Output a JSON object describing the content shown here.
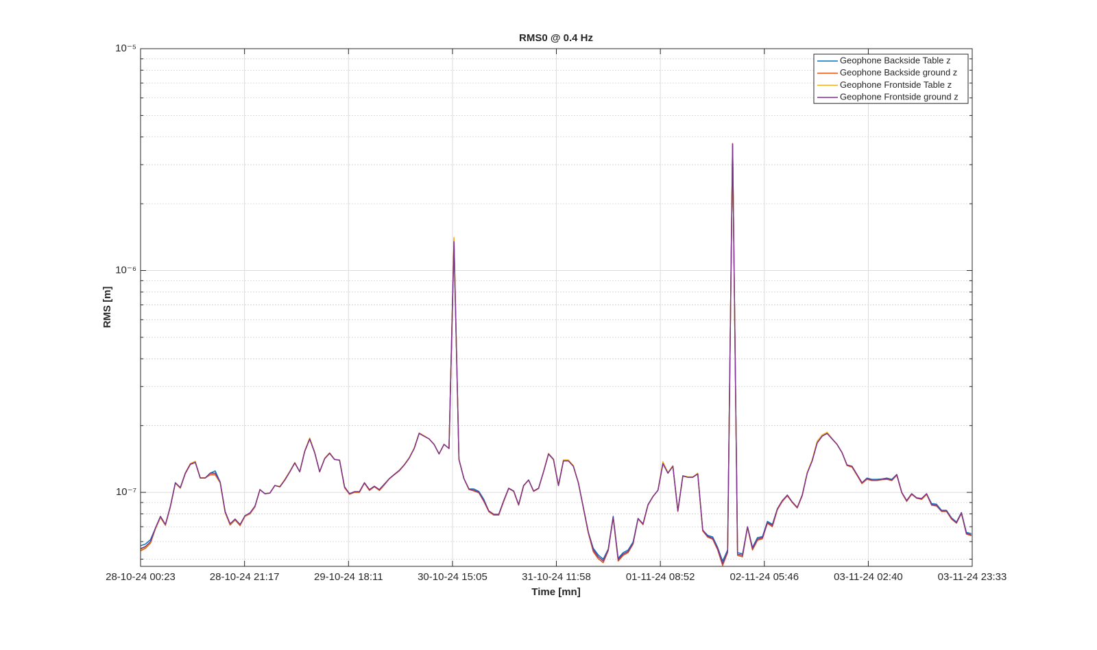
{
  "chart_data": {
    "type": "line",
    "title": "RMS0 @ 0.4 Hz",
    "xlabel": "Time [mn]",
    "ylabel": "RMS [m]",
    "log_y": true,
    "grid": true,
    "minor_grid": true,
    "legend": "upper right",
    "xlim": [
      "28-10-24 00:23",
      "03-11-24 23:33"
    ],
    "xticks": [
      "28-10-24 00:23",
      "28-10-24 21:17",
      "29-10-24 18:11",
      "30-10-24 15:05",
      "31-10-24 11:58",
      "01-11-24 08:52",
      "02-11-24 05:46",
      "03-11-24 02:40",
      "03-11-24 23:33"
    ],
    "ylim": [
      4.64e-08,
      1e-05
    ],
    "yticks": [
      {
        "value": 1e-07,
        "label": "10⁻⁷"
      },
      {
        "value": 1e-06,
        "label": "10⁻⁶"
      },
      {
        "value": 1e-05,
        "label": "10⁻⁵"
      }
    ],
    "x": [
      "28-10-24 00:23",
      "28-10-24 01:23",
      "28-10-24 02:23",
      "28-10-24 03:23",
      "28-10-24 04:23",
      "28-10-24 05:23",
      "28-10-24 06:23",
      "28-10-24 07:23",
      "28-10-24 08:23",
      "28-10-24 09:23",
      "28-10-24 10:23",
      "28-10-24 11:23",
      "28-10-24 12:23",
      "28-10-24 13:23",
      "28-10-24 14:23",
      "28-10-24 15:23",
      "28-10-24 16:23",
      "28-10-24 17:23",
      "28-10-24 18:23",
      "28-10-24 19:23",
      "28-10-24 20:23",
      "28-10-24 21:23",
      "28-10-24 22:23",
      "28-10-24 23:23",
      "29-10-24 00:23",
      "29-10-24 01:23",
      "29-10-24 02:23",
      "29-10-24 03:23",
      "29-10-24 04:23",
      "29-10-24 05:23",
      "29-10-24 06:23",
      "29-10-24 07:23",
      "29-10-24 08:23",
      "29-10-24 09:23",
      "29-10-24 10:23",
      "29-10-24 11:23",
      "29-10-24 12:23",
      "29-10-24 13:23",
      "29-10-24 14:23",
      "29-10-24 15:23",
      "29-10-24 16:23",
      "29-10-24 17:23",
      "29-10-24 18:23",
      "29-10-24 19:23",
      "29-10-24 20:23",
      "29-10-24 21:23",
      "29-10-24 22:23",
      "29-10-24 23:23",
      "30-10-24 00:23",
      "30-10-24 01:23",
      "30-10-24 02:23",
      "30-10-24 03:23",
      "30-10-24 04:23",
      "30-10-24 05:23",
      "30-10-24 06:23",
      "30-10-24 07:23",
      "30-10-24 08:23",
      "30-10-24 09:23",
      "30-10-24 10:23",
      "30-10-24 11:23",
      "30-10-24 12:23",
      "30-10-24 13:23",
      "30-10-24 14:23",
      "30-10-24 15:23",
      "30-10-24 16:23",
      "30-10-24 17:23",
      "30-10-24 18:23",
      "30-10-24 19:23",
      "30-10-24 20:23",
      "30-10-24 21:23",
      "30-10-24 22:23",
      "30-10-24 23:23",
      "31-10-24 00:23",
      "31-10-24 01:23",
      "31-10-24 02:23",
      "31-10-24 03:23",
      "31-10-24 04:23",
      "31-10-24 05:23",
      "31-10-24 06:23",
      "31-10-24 07:23",
      "31-10-24 08:23",
      "31-10-24 09:23",
      "31-10-24 10:23",
      "31-10-24 11:23",
      "31-10-24 12:23",
      "31-10-24 13:23",
      "31-10-24 14:23",
      "31-10-24 15:23",
      "31-10-24 16:23",
      "31-10-24 17:23",
      "31-10-24 18:23",
      "31-10-24 19:23",
      "31-10-24 20:23",
      "31-10-24 21:23",
      "31-10-24 22:23",
      "31-10-24 23:23",
      "01-11-24 00:23",
      "01-11-24 01:23",
      "01-11-24 02:23",
      "01-11-24 03:23",
      "01-11-24 04:23",
      "01-11-24 05:23",
      "01-11-24 06:23",
      "01-11-24 07:23",
      "01-11-24 08:23",
      "01-11-24 09:23",
      "01-11-24 10:23",
      "01-11-24 11:23",
      "01-11-24 12:23",
      "01-11-24 13:23",
      "01-11-24 14:23",
      "01-11-24 15:23",
      "01-11-24 16:23",
      "01-11-24 17:23",
      "01-11-24 18:23",
      "01-11-24 19:23",
      "01-11-24 20:23",
      "01-11-24 21:23",
      "01-11-24 22:23",
      "01-11-24 23:23",
      "02-11-24 00:23",
      "02-11-24 01:23",
      "02-11-24 02:23",
      "02-11-24 03:23",
      "02-11-24 04:23",
      "02-11-24 05:23",
      "02-11-24 06:23",
      "02-11-24 07:23",
      "02-11-24 08:23",
      "02-11-24 09:23",
      "02-11-24 10:23",
      "02-11-24 11:23",
      "02-11-24 12:23",
      "02-11-24 13:23",
      "02-11-24 14:23",
      "02-11-24 15:23",
      "02-11-24 16:23",
      "02-11-24 17:23",
      "02-11-24 18:23",
      "02-11-24 19:23",
      "02-11-24 20:23",
      "02-11-24 21:23",
      "02-11-24 22:23",
      "02-11-24 23:23",
      "03-11-24 00:23",
      "03-11-24 01:23",
      "03-11-24 02:23",
      "03-11-24 03:23",
      "03-11-24 04:23",
      "03-11-24 05:23",
      "03-11-24 06:23",
      "03-11-24 07:23",
      "03-11-24 08:23",
      "03-11-24 09:23",
      "03-11-24 10:23",
      "03-11-24 11:23",
      "03-11-24 12:23",
      "03-11-24 13:23",
      "03-11-24 14:23",
      "03-11-24 15:23",
      "03-11-24 16:23",
      "03-11-24 17:23",
      "03-11-24 18:23",
      "03-11-24 19:23",
      "03-11-24 20:23",
      "03-11-24 21:23",
      "03-11-24 22:23",
      "03-11-24 23:23"
    ],
    "series": [
      {
        "name": "Geophone Backside Table z",
        "color": "#0072bd",
        "values": [
          5.75e-08,
          5.85e-08,
          6.12e-08,
          6.91e-08,
          7.79e-08,
          7.16e-08,
          8.67e-08,
          1.105e-07,
          1.051e-07,
          1.221e-07,
          1.339e-07,
          1.368e-07,
          1.161e-07,
          1.161e-07,
          1.221e-07,
          1.25e-07,
          1.113e-07,
          8.19e-08,
          7.21e-08,
          7.58e-08,
          7.16e-08,
          7.85e-08,
          8.08e-08,
          8.67e-08,
          1.029e-07,
          9.86e-08,
          9.93e-08,
          1.074e-07,
          1.059e-07,
          1.137e-07,
          1.238e-07,
          1.358e-07,
          1.238e-07,
          1.532e-07,
          1.742e-07,
          1.511e-07,
          1.238e-07,
          1.418e-07,
          1.501e-07,
          1.407e-07,
          1.397e-07,
          1.059e-07,
          9.86e-08,
          1.007e-07,
          1.007e-07,
          1.105e-07,
          1.029e-07,
          1.066e-07,
          1.029e-07,
          1.089e-07,
          1.153e-07,
          1.204e-07,
          1.256e-07,
          1.329e-07,
          1.428e-07,
          1.577e-07,
          1.845e-07,
          1.792e-07,
          1.742e-07,
          1.646e-07,
          1.49e-07,
          1.646e-07,
          1.577e-07,
          1.32e-06,
          1.407e-07,
          1.153e-07,
          1.036e-07,
          1.036e-07,
          1.01e-07,
          9.3e-08,
          8.25e-08,
          7.96e-08,
          7.96e-08,
          9.18e-08,
          1.044e-07,
          1.014e-07,
          8.8e-08,
          1.074e-07,
          1.137e-07,
          1.014e-07,
          1.044e-07,
          1.238e-07,
          1.49e-07,
          1.407e-07,
          1.074e-07,
          1.387e-07,
          1.387e-07,
          1.311e-07,
          1.105e-07,
          8.55e-08,
          6.62e-08,
          5.6e-08,
          5.22e-08,
          5e-08,
          5.55e-08,
          7.8e-08,
          5.05e-08,
          5.35e-08,
          5.5e-08,
          5.98e-08,
          7.63e-08,
          7.21e-08,
          8.8e-08,
          9.58e-08,
          1.022e-07,
          1.348e-07,
          1.221e-07,
          1.311e-07,
          8.25e-08,
          1.186e-07,
          1.17e-07,
          1.17e-07,
          1.212e-07,
          6.76e-08,
          6.4e-08,
          6.3e-08,
          5.65e-08,
          4.9e-08,
          5.5e-08,
          3.7e-06,
          5.35e-08,
          5.28e-08,
          7e-08,
          5.65e-08,
          6.25e-08,
          6.32e-08,
          7.4e-08,
          7.18e-08,
          8.43e-08,
          9.18e-08,
          9.72e-08,
          9.05e-08,
          8.55e-08,
          9.72e-08,
          1.221e-07,
          1.387e-07,
          1.67e-07,
          1.792e-07,
          1.845e-07,
          1.742e-07,
          1.646e-07,
          1.511e-07,
          1.329e-07,
          1.311e-07,
          1.204e-07,
          1.105e-07,
          1.16e-07,
          1.145e-07,
          1.145e-07,
          1.15e-07,
          1.16e-07,
          1.145e-07,
          1.204e-07,
          1e-07,
          9.18e-08,
          9.86e-08,
          9.45e-08,
          9.38e-08,
          9.86e-08,
          8.9e-08,
          8.84e-08,
          8.3e-08,
          8.3e-08,
          7.68e-08,
          7.35e-08,
          8.12e-08,
          6.6e-08,
          6.52e-08
        ]
      },
      {
        "name": "Geophone Backside ground z",
        "color": "#d95319",
        "values": [
          5.45e-08,
          5.6e-08,
          5.9e-08,
          6.85e-08,
          7.7e-08,
          7.1e-08,
          8.6e-08,
          1.1e-07,
          1.045e-07,
          1.215e-07,
          1.335e-07,
          1.365e-07,
          1.161e-07,
          1.161e-07,
          1.2e-07,
          1.2e-07,
          1.105e-07,
          8.1e-08,
          7.12e-08,
          7.5e-08,
          7.08e-08,
          7.8e-08,
          8e-08,
          8.6e-08,
          1.029e-07,
          9.86e-08,
          9.93e-08,
          1.074e-07,
          1.059e-07,
          1.137e-07,
          1.238e-07,
          1.358e-07,
          1.238e-07,
          1.532e-07,
          1.742e-07,
          1.511e-07,
          1.238e-07,
          1.418e-07,
          1.501e-07,
          1.407e-07,
          1.397e-07,
          1.05e-07,
          9.8e-08,
          1e-07,
          1e-07,
          1.1e-07,
          1.02e-07,
          1.06e-07,
          1.02e-07,
          1.08e-07,
          1.15e-07,
          1.2e-07,
          1.25e-07,
          1.329e-07,
          1.428e-07,
          1.577e-07,
          1.845e-07,
          1.792e-07,
          1.742e-07,
          1.646e-07,
          1.49e-07,
          1.646e-07,
          1.577e-07,
          1.39e-06,
          1.407e-07,
          1.153e-07,
          1.03e-07,
          1.015e-07,
          9.95e-08,
          9.1e-08,
          8.18e-08,
          7.9e-08,
          7.9e-08,
          9.1e-08,
          1.04e-07,
          1.01e-07,
          8.75e-08,
          1.07e-07,
          1.137e-07,
          1.01e-07,
          1.04e-07,
          1.238e-07,
          1.49e-07,
          1.407e-07,
          1.074e-07,
          1.387e-07,
          1.387e-07,
          1.311e-07,
          1.105e-07,
          8.5e-08,
          6.55e-08,
          5.4e-08,
          5.02e-08,
          4.82e-08,
          5.45e-08,
          7.7e-08,
          4.9e-08,
          5.2e-08,
          5.35e-08,
          5.85e-08,
          7.6e-08,
          7.15e-08,
          8.75e-08,
          9.58e-08,
          1.022e-07,
          1.36e-07,
          1.221e-07,
          1.311e-07,
          8.2e-08,
          1.186e-07,
          1.17e-07,
          1.17e-07,
          1.212e-07,
          6.7e-08,
          6.28e-08,
          6.15e-08,
          5.5e-08,
          4.68e-08,
          5.35e-08,
          3.74e-06,
          5.2e-08,
          5.12e-08,
          6.95e-08,
          5.5e-08,
          6.08e-08,
          6.18e-08,
          7.25e-08,
          7e-08,
          8.35e-08,
          9.1e-08,
          9.65e-08,
          9e-08,
          8.5e-08,
          9.65e-08,
          1.221e-07,
          1.4e-07,
          1.69e-07,
          1.81e-07,
          1.86e-07,
          1.742e-07,
          1.646e-07,
          1.511e-07,
          1.32e-07,
          1.3e-07,
          1.195e-07,
          1.095e-07,
          1.145e-07,
          1.13e-07,
          1.13e-07,
          1.14e-07,
          1.145e-07,
          1.13e-07,
          1.195e-07,
          9.95e-08,
          9.1e-08,
          9.8e-08,
          9.4e-08,
          9.3e-08,
          9.8e-08,
          8.75e-08,
          8.68e-08,
          8.2e-08,
          8.2e-08,
          7.58e-08,
          7.26e-08,
          8.03e-08,
          6.48e-08,
          6.38e-08
        ]
      },
      {
        "name": "Geophone Frontside Table z",
        "color": "#edb120",
        "values": [
          5.52e-08,
          5.65e-08,
          5.95e-08,
          6.88e-08,
          7.75e-08,
          7.14e-08,
          8.65e-08,
          1.103e-07,
          1.05e-07,
          1.225e-07,
          1.35e-07,
          1.38e-07,
          1.165e-07,
          1.165e-07,
          1.215e-07,
          1.215e-07,
          1.11e-07,
          8.15e-08,
          7.18e-08,
          7.55e-08,
          7.14e-08,
          7.83e-08,
          8.06e-08,
          8.65e-08,
          1.029e-07,
          9.86e-08,
          9.93e-08,
          1.074e-07,
          1.065e-07,
          1.145e-07,
          1.245e-07,
          1.365e-07,
          1.238e-07,
          1.54e-07,
          1.76e-07,
          1.52e-07,
          1.238e-07,
          1.425e-07,
          1.51e-07,
          1.407e-07,
          1.397e-07,
          1.059e-07,
          9.86e-08,
          1.007e-07,
          1.007e-07,
          1.105e-07,
          1.029e-07,
          1.066e-07,
          1.029e-07,
          1.089e-07,
          1.153e-07,
          1.204e-07,
          1.256e-07,
          1.335e-07,
          1.435e-07,
          1.585e-07,
          1.855e-07,
          1.8e-07,
          1.742e-07,
          1.646e-07,
          1.49e-07,
          1.646e-07,
          1.577e-07,
          1.41e-06,
          1.407e-07,
          1.153e-07,
          1.036e-07,
          1.022e-07,
          1e-07,
          9.18e-08,
          8.25e-08,
          7.96e-08,
          7.96e-08,
          9.18e-08,
          1.044e-07,
          1.014e-07,
          8.8e-08,
          1.074e-07,
          1.137e-07,
          1.014e-07,
          1.044e-07,
          1.238e-07,
          1.5e-07,
          1.415e-07,
          1.074e-07,
          1.4e-07,
          1.4e-07,
          1.32e-07,
          1.105e-07,
          8.55e-08,
          6.62e-08,
          5.5e-08,
          5.12e-08,
          4.91e-08,
          5.5e-08,
          7.74e-08,
          4.98e-08,
          5.27e-08,
          5.42e-08,
          5.9e-08,
          7.63e-08,
          7.21e-08,
          8.8e-08,
          9.58e-08,
          1.022e-07,
          1.375e-07,
          1.23e-07,
          1.32e-07,
          8.25e-08,
          1.19e-07,
          1.175e-07,
          1.175e-07,
          1.22e-07,
          6.76e-08,
          6.34e-08,
          6.21e-08,
          5.58e-08,
          4.77e-08,
          5.42e-08,
          3.71e-06,
          5.27e-08,
          5.2e-08,
          7e-08,
          5.58e-08,
          6.16e-08,
          6.25e-08,
          7.31e-08,
          7.1e-08,
          8.43e-08,
          9.18e-08,
          9.72e-08,
          9.05e-08,
          8.55e-08,
          9.72e-08,
          1.23e-07,
          1.4e-07,
          1.7e-07,
          1.815e-07,
          1.865e-07,
          1.75e-07,
          1.646e-07,
          1.511e-07,
          1.329e-07,
          1.311e-07,
          1.204e-07,
          1.105e-07,
          1.153e-07,
          1.137e-07,
          1.137e-07,
          1.145e-07,
          1.153e-07,
          1.137e-07,
          1.204e-07,
          1e-07,
          9.18e-08,
          9.86e-08,
          9.45e-08,
          9.38e-08,
          9.86e-08,
          8.8e-08,
          8.74e-08,
          8.25e-08,
          8.25e-08,
          7.63e-08,
          7.31e-08,
          8.08e-08,
          6.53e-08,
          6.43e-08
        ]
      },
      {
        "name": "Geophone Frontside ground z",
        "color": "#7e2f8e",
        "values": [
          5.58e-08,
          5.7e-08,
          5.99e-08,
          6.91e-08,
          7.79e-08,
          7.16e-08,
          8.67e-08,
          1.105e-07,
          1.051e-07,
          1.221e-07,
          1.339e-07,
          1.368e-07,
          1.161e-07,
          1.161e-07,
          1.221e-07,
          1.221e-07,
          1.113e-07,
          8.19e-08,
          7.21e-08,
          7.58e-08,
          7.16e-08,
          7.85e-08,
          8.08e-08,
          8.67e-08,
          1.029e-07,
          9.86e-08,
          9.93e-08,
          1.074e-07,
          1.059e-07,
          1.137e-07,
          1.238e-07,
          1.358e-07,
          1.238e-07,
          1.532e-07,
          1.742e-07,
          1.511e-07,
          1.238e-07,
          1.418e-07,
          1.501e-07,
          1.407e-07,
          1.397e-07,
          1.059e-07,
          9.86e-08,
          1.007e-07,
          1.007e-07,
          1.105e-07,
          1.029e-07,
          1.066e-07,
          1.029e-07,
          1.089e-07,
          1.153e-07,
          1.204e-07,
          1.256e-07,
          1.329e-07,
          1.428e-07,
          1.577e-07,
          1.845e-07,
          1.792e-07,
          1.742e-07,
          1.646e-07,
          1.49e-07,
          1.646e-07,
          1.577e-07,
          1.35e-06,
          1.407e-07,
          1.153e-07,
          1.036e-07,
          1.022e-07,
          1e-07,
          9.18e-08,
          8.25e-08,
          7.96e-08,
          7.96e-08,
          9.18e-08,
          1.044e-07,
          1.014e-07,
          8.8e-08,
          1.074e-07,
          1.137e-07,
          1.014e-07,
          1.044e-07,
          1.238e-07,
          1.49e-07,
          1.407e-07,
          1.074e-07,
          1.387e-07,
          1.387e-07,
          1.311e-07,
          1.105e-07,
          8.55e-08,
          6.62e-08,
          5.5e-08,
          5.12e-08,
          4.91e-08,
          5.5e-08,
          7.74e-08,
          4.98e-08,
          5.27e-08,
          5.42e-08,
          5.9e-08,
          7.63e-08,
          7.21e-08,
          8.8e-08,
          9.58e-08,
          1.022e-07,
          1.348e-07,
          1.221e-07,
          1.311e-07,
          8.25e-08,
          1.186e-07,
          1.17e-07,
          1.17e-07,
          1.212e-07,
          6.76e-08,
          6.34e-08,
          6.21e-08,
          5.58e-08,
          4.77e-08,
          5.42e-08,
          3.72e-06,
          5.27e-08,
          5.2e-08,
          7e-08,
          5.58e-08,
          6.16e-08,
          6.25e-08,
          7.31e-08,
          7.1e-08,
          8.43e-08,
          9.18e-08,
          9.72e-08,
          9.05e-08,
          8.55e-08,
          9.72e-08,
          1.221e-07,
          1.387e-07,
          1.67e-07,
          1.792e-07,
          1.845e-07,
          1.742e-07,
          1.646e-07,
          1.511e-07,
          1.329e-07,
          1.311e-07,
          1.204e-07,
          1.105e-07,
          1.153e-07,
          1.137e-07,
          1.137e-07,
          1.145e-07,
          1.153e-07,
          1.137e-07,
          1.204e-07,
          1e-07,
          9.18e-08,
          9.86e-08,
          9.45e-08,
          9.38e-08,
          9.86e-08,
          8.8e-08,
          8.74e-08,
          8.25e-08,
          8.25e-08,
          7.63e-08,
          7.31e-08,
          8.08e-08,
          6.53e-08,
          6.43e-08
        ]
      }
    ]
  }
}
